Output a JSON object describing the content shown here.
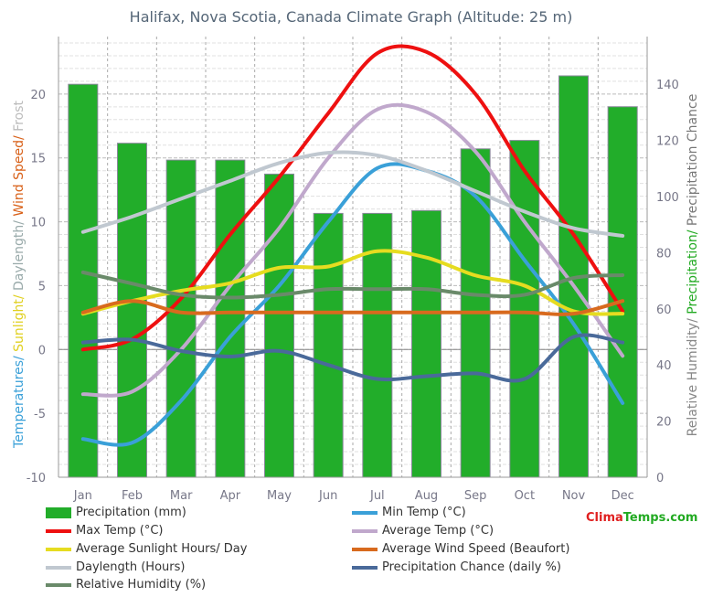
{
  "chart_data": {
    "type": "bar+line",
    "title": "Halifax, Nova Scotia, Canada Climate Graph (Altitude: 25 m)",
    "ylabel_left_parts": [
      {
        "text": "Temperatures/ ",
        "color": "#3aa0d8"
      },
      {
        "text": "Sunlight/ ",
        "color": "#e0d020"
      },
      {
        "text": "Daylength/ ",
        "color": "#9aa"
      },
      {
        "text": "Wind Speed/ ",
        "color": "#d86018"
      },
      {
        "text": "Frost",
        "color": "#bbb"
      }
    ],
    "ylabel_right_parts": [
      {
        "text": "Relative Humidity/ ",
        "color": "#888"
      },
      {
        "text": "Precipitation/ ",
        "color": "#22aa22"
      },
      {
        "text": "Precipitation Chance",
        "color": "#777"
      }
    ],
    "categories": [
      "Jan",
      "Feb",
      "Mar",
      "Apr",
      "May",
      "Jun",
      "Jul",
      "Aug",
      "Sep",
      "Oct",
      "Nov",
      "Dec"
    ],
    "ylim_left": [
      -10,
      24.5
    ],
    "yticks_left": [
      -10,
      -5,
      0,
      5,
      10,
      15,
      20
    ],
    "ylim_right": [
      0,
      157
    ],
    "yticks_right": [
      0,
      20,
      40,
      60,
      80,
      100,
      120,
      140
    ],
    "series": [
      {
        "name": "Precipitation (mm)",
        "type": "bar",
        "axis": "right",
        "color": "#22ad2a",
        "values": [
          140,
          119,
          113,
          113,
          108,
          94,
          94,
          95,
          117,
          120,
          143,
          132
        ]
      },
      {
        "name": "Min Temp (°C)",
        "type": "line",
        "axis": "left",
        "color": "#3aa0d8",
        "values": [
          -7,
          -7.3,
          -4,
          1,
          5,
          10,
          14.2,
          14,
          12,
          7,
          2,
          -4.2
        ]
      },
      {
        "name": "Max Temp (°C)",
        "type": "line",
        "axis": "left",
        "color": "#ee1010",
        "values": [
          0,
          0.8,
          4,
          9,
          13.5,
          18.5,
          23.2,
          23.3,
          20,
          14,
          9,
          3
        ]
      },
      {
        "name": "Average Temp (°C)",
        "type": "line",
        "axis": "left",
        "color": "#c0a8cc",
        "values": [
          -3.5,
          -3.3,
          0,
          5,
          9.5,
          15,
          18.8,
          18.6,
          15.5,
          10,
          5,
          -0.5
        ]
      },
      {
        "name": "Average Sunlight Hours/ Day",
        "type": "line",
        "axis": "left",
        "color": "#e6dc20",
        "values": [
          2.8,
          3.8,
          4.6,
          5.2,
          6.4,
          6.5,
          7.7,
          7.2,
          5.8,
          5,
          3,
          2.8
        ]
      },
      {
        "name": "Average Wind Speed (Beaufort)",
        "type": "line",
        "axis": "left",
        "color": "#d86a1e",
        "values": [
          2.9,
          3.8,
          2.9,
          2.9,
          2.9,
          2.9,
          2.9,
          2.9,
          2.9,
          2.9,
          2.8,
          3.8
        ]
      },
      {
        "name": "Daylength (Hours)",
        "type": "line",
        "axis": "left",
        "color": "#c0c8d0",
        "values": [
          9.2,
          10.4,
          11.8,
          13.2,
          14.6,
          15.4,
          15.2,
          14,
          12.4,
          10.8,
          9.5,
          8.9
        ]
      },
      {
        "name": "Precipitation Chance (daily %)",
        "type": "line",
        "axis": "right",
        "color": "#4a6a9a",
        "values": [
          48,
          49,
          45,
          43,
          45,
          40,
          35,
          36,
          37,
          35,
          50,
          48
        ]
      },
      {
        "name": "Relative Humidity (%)",
        "type": "line",
        "axis": "right",
        "color": "#6a8a6a",
        "values": [
          73,
          69,
          65,
          64,
          65,
          67,
          67,
          67,
          65,
          65,
          71,
          72
        ]
      }
    ]
  },
  "logo": {
    "part1": "Clima",
    "part2": "Temps.com",
    "color1": "#e02020",
    "color2": "#22aa22"
  }
}
